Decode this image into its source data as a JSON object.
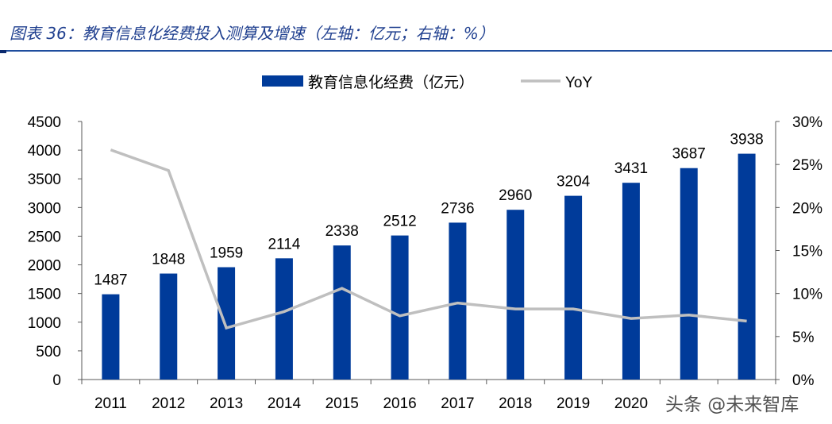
{
  "title": "图表 36：教育信息化经费投入测算及增速（左轴：亿元；右轴：%）",
  "watermark": "头条 @未来智库",
  "chart_data": {
    "type": "bar+line",
    "categories": [
      "2011",
      "2012",
      "2013",
      "2014",
      "2015",
      "2016",
      "2017",
      "2018",
      "2019",
      "2020",
      "",
      ""
    ],
    "series": [
      {
        "name": "教育信息化经费（亿元）",
        "type": "bar",
        "axis": "left",
        "color": "#003b9a",
        "values": [
          1487,
          1848,
          1959,
          2114,
          2338,
          2512,
          2736,
          2960,
          3204,
          3431,
          3687,
          3938
        ]
      },
      {
        "name": "YoY",
        "type": "line",
        "axis": "right",
        "color": "#bfbfbf",
        "values": [
          26.7,
          24.3,
          6.0,
          7.9,
          10.6,
          7.4,
          8.9,
          8.2,
          8.2,
          7.1,
          7.5,
          6.8
        ]
      }
    ],
    "left_axis": {
      "range": [
        0,
        4500
      ],
      "ticks": [
        "0",
        "500",
        "1000",
        "1500",
        "2000",
        "2500",
        "3000",
        "3500",
        "4000",
        "4500"
      ]
    },
    "right_axis": {
      "range": [
        0,
        30
      ],
      "ticks": [
        "0%",
        "5%",
        "10%",
        "15%",
        "20%",
        "25%",
        "30%"
      ]
    },
    "legend": "top-center",
    "grid": false,
    "data_labels": true
  }
}
